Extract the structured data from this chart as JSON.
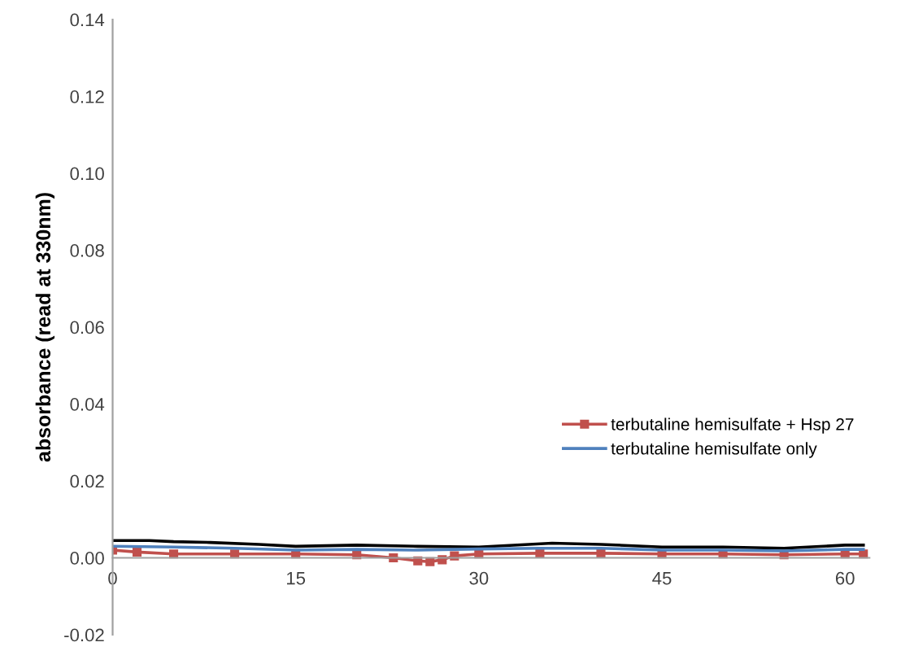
{
  "chart_data": {
    "type": "line",
    "ylabel": "absorbance (read at 330nm)",
    "xlim": [
      0,
      62
    ],
    "xticks": [
      0,
      15,
      30,
      45,
      60
    ],
    "ylim": [
      -0.02,
      0.14
    ],
    "yticks": [
      {
        "value": -0.02,
        "label": "-0.02"
      },
      {
        "value": 0,
        "label": "0.00"
      },
      {
        "value": 0.02,
        "label": "0.02"
      },
      {
        "value": 0.04,
        "label": "0.04"
      },
      {
        "value": 0.06,
        "label": "0.06"
      },
      {
        "value": 0.08,
        "label": "0.08"
      },
      {
        "value": 0.1,
        "label": "0.10"
      },
      {
        "value": 0.12,
        "label": "0.12"
      },
      {
        "value": 0.14,
        "label": "0.14"
      }
    ],
    "grid": false,
    "legend": "right",
    "series": [
      {
        "color": "#000000",
        "x": [
          0,
          3,
          5,
          8,
          12,
          15,
          20,
          25,
          30,
          36,
          40,
          45,
          50,
          55,
          60,
          61.5
        ],
        "values": [
          0.0045,
          0.0045,
          0.0042,
          0.004,
          0.0035,
          0.003,
          0.0033,
          0.003,
          0.0028,
          0.0038,
          0.0035,
          0.0028,
          0.0028,
          0.0025,
          0.0033,
          0.0033
        ]
      },
      {
        "name": "terbutaline hemisulfate + Hsp 27",
        "color": "#c0504d",
        "marker": "square",
        "x": [
          0,
          2,
          5,
          10,
          15,
          20,
          23,
          25,
          26,
          27,
          28,
          30,
          35,
          40,
          45,
          50,
          55,
          60,
          61.5
        ],
        "values": [
          0.002,
          0.0015,
          0.001,
          0.001,
          0.001,
          0.0008,
          0.0,
          -0.0008,
          -0.001,
          -0.0005,
          0.0005,
          0.001,
          0.0012,
          0.0012,
          0.001,
          0.001,
          0.0008,
          0.001,
          0.001
        ]
      },
      {
        "name": "terbutaline hemisulfate only",
        "color": "#4f81bd",
        "x": [
          0,
          5,
          10,
          15,
          20,
          25,
          30,
          35,
          40,
          45,
          50,
          55,
          60,
          61.5
        ],
        "values": [
          0.003,
          0.0028,
          0.0025,
          0.002,
          0.0022,
          0.002,
          0.0023,
          0.0025,
          0.0025,
          0.002,
          0.002,
          0.0018,
          0.0022,
          0.0022
        ]
      }
    ]
  }
}
